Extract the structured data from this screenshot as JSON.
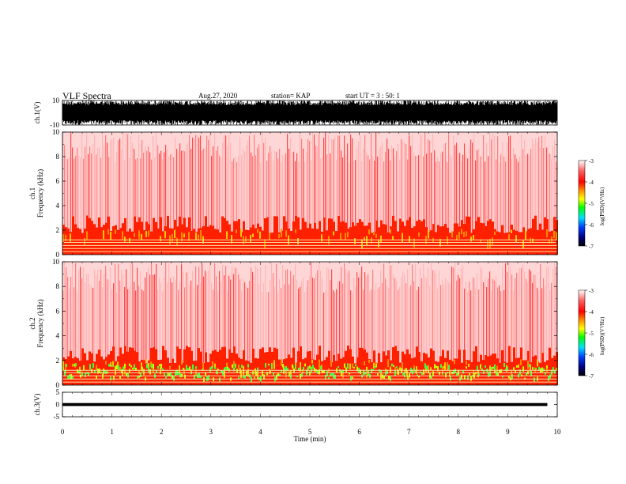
{
  "header": {
    "title": "VLF Spectra",
    "date": "Aug.27, 2020",
    "station": "station= KAP",
    "start": "start  UT =  3 : 50: 1"
  },
  "chart_data": [
    {
      "type": "line",
      "title": "",
      "ylabel": "ch.1(V)",
      "ylim": [
        -10,
        10
      ],
      "yticks": [
        10,
        -10
      ],
      "xlim": [
        0,
        10
      ],
      "description_of_values": "dense oscillating waveform spanning full range",
      "x": [
        0,
        10
      ],
      "envelope_min": [
        -10,
        -10
      ],
      "envelope_max": [
        10,
        10
      ]
    },
    {
      "type": "heatmap",
      "ylabel": "ch.1\nFrequency (kHz)",
      "ylim": [
        0,
        10
      ],
      "yticks": [
        0,
        2,
        4,
        6,
        8,
        10
      ],
      "xlim": [
        0,
        10
      ],
      "colorbar": {
        "label": "log(PSD)(V²/Hz)",
        "ticks": [
          -3,
          -4,
          -5,
          -6,
          -7
        ],
        "range": [
          -7,
          -3
        ]
      }
    },
    {
      "type": "heatmap",
      "ylabel": "ch.2\nFrequency (kHz)",
      "ylim": [
        0,
        10
      ],
      "yticks": [
        0,
        2,
        4,
        6,
        8,
        10
      ],
      "xlim": [
        0,
        10
      ],
      "colorbar": {
        "label": "log(PSD)(V²/Hz)",
        "ticks": [
          -3,
          -4,
          -5,
          -6,
          -7
        ],
        "range": [
          -7,
          -3
        ]
      }
    },
    {
      "type": "line",
      "ylabel": "ch.3(V)",
      "ylim": [
        -5,
        5
      ],
      "yticks": [
        5,
        0,
        -5
      ],
      "xlim": [
        0,
        10
      ],
      "xlabel": "Time (min)",
      "xticks": [
        0,
        1,
        2,
        3,
        4,
        5,
        6,
        7,
        8,
        9,
        10
      ],
      "x": [
        0,
        9.8
      ],
      "envelope_min": [
        -0.6,
        -0.6
      ],
      "envelope_max": [
        0.6,
        0.6
      ]
    }
  ],
  "colors": {
    "background": "#ffffff",
    "spectrogram_bg_tint": "#ffffff",
    "scale_max": "#ff0000",
    "scale_mid": "#00ff00",
    "scale_min": "#000000"
  }
}
